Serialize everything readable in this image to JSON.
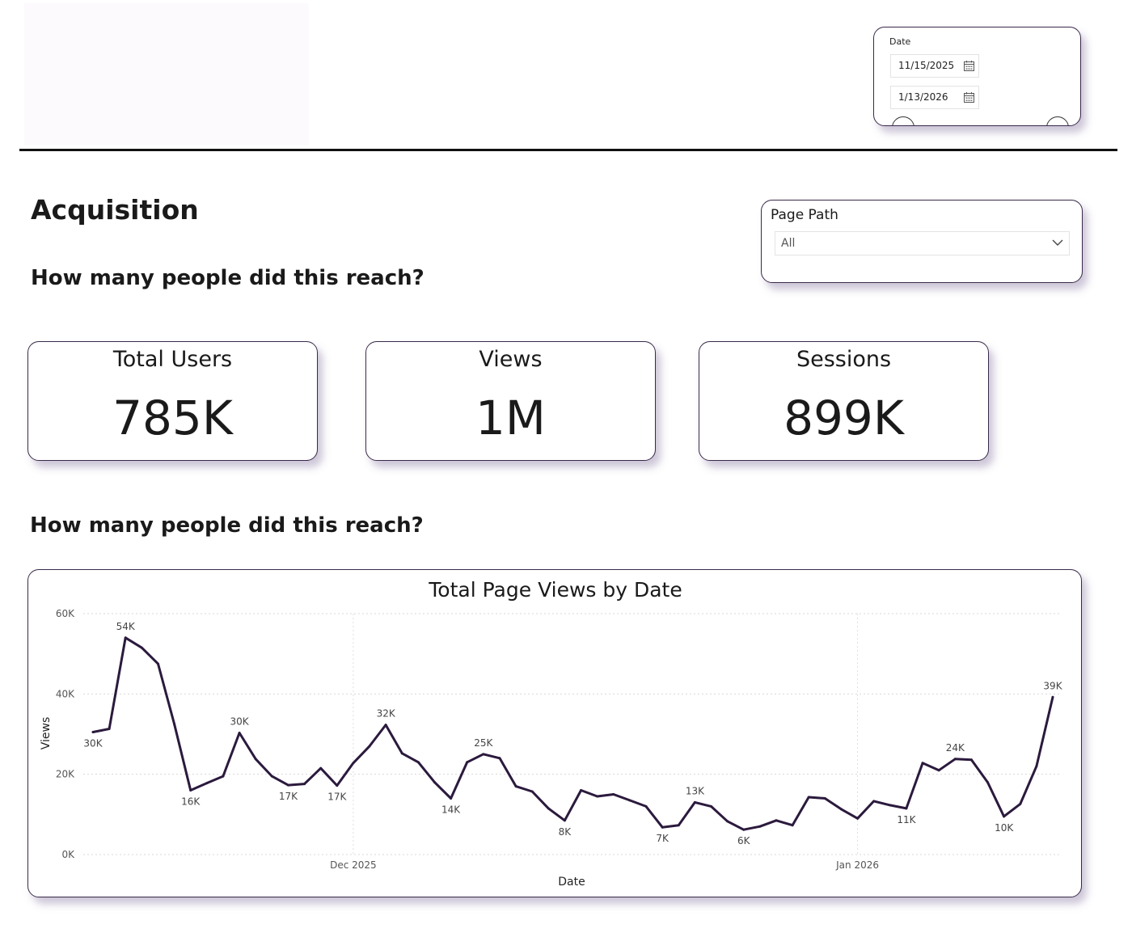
{
  "date_slicer": {
    "label": "Date",
    "start": "11/15/2025",
    "end": "1/13/2026"
  },
  "page": {
    "title": "Acquisition",
    "question_1": "How many people did this reach?",
    "question_2": "How many people did this reach?"
  },
  "page_path_filter": {
    "label": "Page Path",
    "selected": "All"
  },
  "kpis": [
    {
      "label": "Total Users",
      "value": "785K"
    },
    {
      "label": "Views",
      "value": "1M"
    },
    {
      "label": "Sessions",
      "value": "899K"
    }
  ],
  "colors": {
    "line": "#2b1a3d",
    "card_border": "#3a2a4a",
    "shadow": "#8a78a8"
  },
  "icons": [
    "calendar-icon",
    "chevron-down-icon"
  ],
  "chart_data": {
    "type": "line",
    "title": "Total Page Views by Date",
    "xlabel": "Date",
    "ylabel": "Views",
    "ylim": [
      0,
      60000
    ],
    "yticks": [
      "0K",
      "20K",
      "40K",
      "60K"
    ],
    "xticks": [
      {
        "label": "Dec 2025",
        "date": "2025-12-01"
      },
      {
        "label": "Jan 2026",
        "date": "2026-01-01"
      }
    ],
    "grid": true,
    "series": [
      {
        "values": [
          {
            "x": "2025-11-15",
            "y": 30500,
            "label": "30K"
          },
          {
            "x": "2025-11-16",
            "y": 31300
          },
          {
            "x": "2025-11-17",
            "y": 54000,
            "label": "54K"
          },
          {
            "x": "2025-11-18",
            "y": 51500
          },
          {
            "x": "2025-11-19",
            "y": 47500
          },
          {
            "x": "2025-11-20",
            "y": 32500
          },
          {
            "x": "2025-11-21",
            "y": 16000,
            "label": "16K"
          },
          {
            "x": "2025-11-22",
            "y": 17800
          },
          {
            "x": "2025-11-23",
            "y": 19500
          },
          {
            "x": "2025-11-24",
            "y": 30300,
            "label": "30K"
          },
          {
            "x": "2025-11-25",
            "y": 23800
          },
          {
            "x": "2025-11-26",
            "y": 19500
          },
          {
            "x": "2025-11-27",
            "y": 17300,
            "label": "17K"
          },
          {
            "x": "2025-11-28",
            "y": 17600
          },
          {
            "x": "2025-11-29",
            "y": 21500
          },
          {
            "x": "2025-11-30",
            "y": 17200,
            "label": "17K"
          },
          {
            "x": "2025-12-01",
            "y": 22800
          },
          {
            "x": "2025-12-02",
            "y": 27000
          },
          {
            "x": "2025-12-03",
            "y": 32300,
            "label": "32K"
          },
          {
            "x": "2025-12-04",
            "y": 25200
          },
          {
            "x": "2025-12-05",
            "y": 23000
          },
          {
            "x": "2025-12-06",
            "y": 18000
          },
          {
            "x": "2025-12-07",
            "y": 14000,
            "label": "14K"
          },
          {
            "x": "2025-12-08",
            "y": 23000
          },
          {
            "x": "2025-12-09",
            "y": 25000,
            "label": "25K"
          },
          {
            "x": "2025-12-10",
            "y": 24000
          },
          {
            "x": "2025-12-11",
            "y": 17000
          },
          {
            "x": "2025-12-12",
            "y": 15700
          },
          {
            "x": "2025-12-13",
            "y": 11500
          },
          {
            "x": "2025-12-14",
            "y": 8500,
            "label": "8K"
          },
          {
            "x": "2025-12-15",
            "y": 16000
          },
          {
            "x": "2025-12-16",
            "y": 14500
          },
          {
            "x": "2025-12-17",
            "y": 15000
          },
          {
            "x": "2025-12-18",
            "y": 13500
          },
          {
            "x": "2025-12-19",
            "y": 12000
          },
          {
            "x": "2025-12-20",
            "y": 6800,
            "label": "7K"
          },
          {
            "x": "2025-12-21",
            "y": 7300
          },
          {
            "x": "2025-12-22",
            "y": 13000,
            "label": "13K"
          },
          {
            "x": "2025-12-23",
            "y": 12000
          },
          {
            "x": "2025-12-24",
            "y": 8300
          },
          {
            "x": "2025-12-25",
            "y": 6200,
            "label": "6K"
          },
          {
            "x": "2025-12-26",
            "y": 7000
          },
          {
            "x": "2025-12-27",
            "y": 8500
          },
          {
            "x": "2025-12-28",
            "y": 7300
          },
          {
            "x": "2025-12-29",
            "y": 14300
          },
          {
            "x": "2025-12-30",
            "y": 14000
          },
          {
            "x": "2025-12-31",
            "y": 11300
          },
          {
            "x": "2026-01-01",
            "y": 9000
          },
          {
            "x": "2026-01-02",
            "y": 13300
          },
          {
            "x": "2026-01-03",
            "y": 12300
          },
          {
            "x": "2026-01-04",
            "y": 11500,
            "label": "11K"
          },
          {
            "x": "2026-01-05",
            "y": 22800
          },
          {
            "x": "2026-01-06",
            "y": 21000
          },
          {
            "x": "2026-01-07",
            "y": 23800,
            "label": "24K"
          },
          {
            "x": "2026-01-08",
            "y": 23600
          },
          {
            "x": "2026-01-09",
            "y": 18000
          },
          {
            "x": "2026-01-10",
            "y": 9500,
            "label": "10K"
          },
          {
            "x": "2026-01-11",
            "y": 12600
          },
          {
            "x": "2026-01-12",
            "y": 22000
          },
          {
            "x": "2026-01-13",
            "y": 39200,
            "label": "39K"
          }
        ]
      }
    ]
  }
}
